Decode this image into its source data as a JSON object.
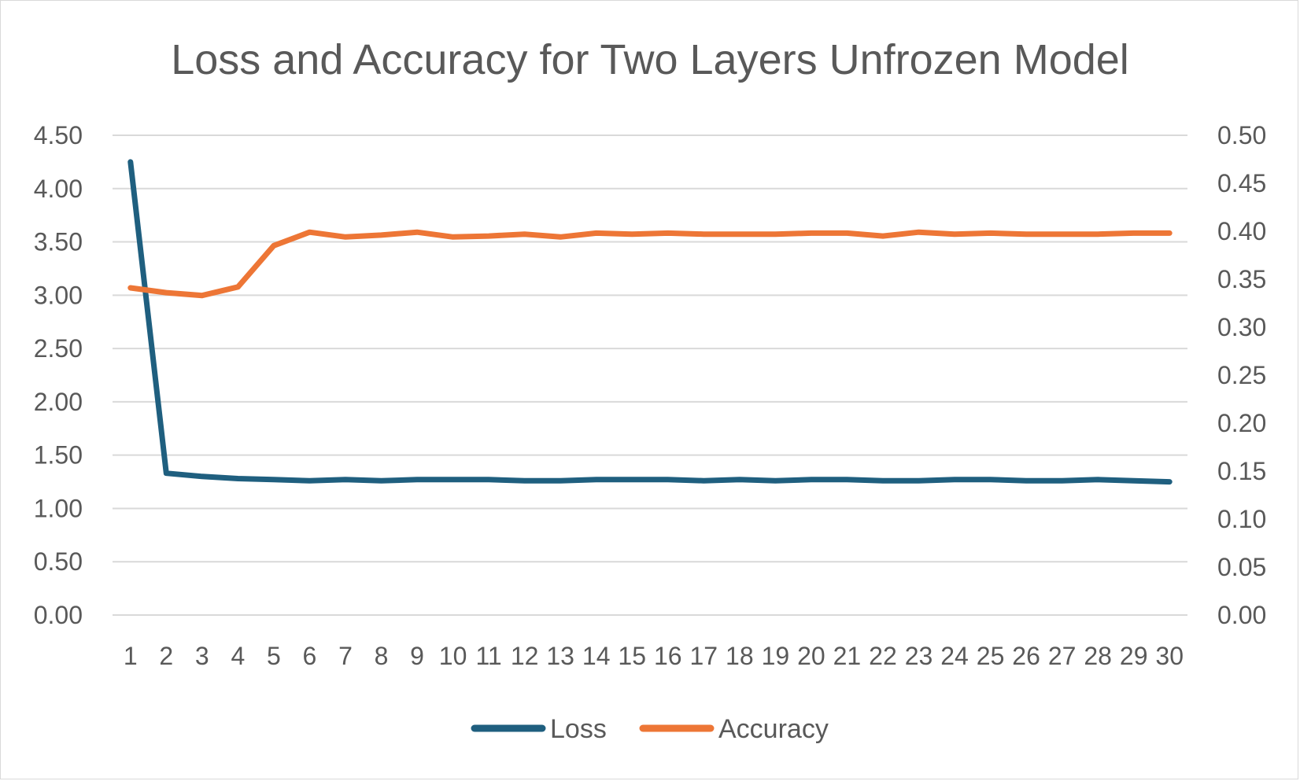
{
  "chart_data": {
    "type": "line",
    "title": "Loss and Accuracy for Two Layers Unfrozen Model",
    "xlabel": "",
    "ylabel": "",
    "categories": [
      "1",
      "2",
      "3",
      "4",
      "5",
      "6",
      "7",
      "8",
      "9",
      "10",
      "11",
      "12",
      "13",
      "14",
      "15",
      "16",
      "17",
      "18",
      "19",
      "20",
      "21",
      "22",
      "23",
      "24",
      "25",
      "26",
      "27",
      "28",
      "29",
      "30"
    ],
    "y_axis_left": {
      "min": 0,
      "max": 4.5,
      "ticks": [
        "0.00",
        "0.50",
        "1.00",
        "1.50",
        "2.00",
        "2.50",
        "3.00",
        "3.50",
        "4.00",
        "4.50"
      ]
    },
    "y_axis_right": {
      "min": 0,
      "max": 0.5,
      "ticks": [
        "0.00",
        "0.05",
        "0.10",
        "0.15",
        "0.20",
        "0.25",
        "0.30",
        "0.35",
        "0.40",
        "0.45",
        "0.50"
      ]
    },
    "grid": true,
    "legend": "bottom",
    "series": [
      {
        "name": "Loss",
        "axis": "left",
        "color": "#1f5f7f",
        "values": [
          4.25,
          1.33,
          1.3,
          1.28,
          1.27,
          1.26,
          1.27,
          1.26,
          1.27,
          1.27,
          1.27,
          1.26,
          1.26,
          1.27,
          1.27,
          1.27,
          1.26,
          1.27,
          1.26,
          1.27,
          1.27,
          1.26,
          1.26,
          1.27,
          1.27,
          1.26,
          1.26,
          1.27,
          1.26,
          1.25
        ]
      },
      {
        "name": "Accuracy",
        "axis": "right",
        "color": "#ed7636",
        "values": [
          0.341,
          0.336,
          0.333,
          0.342,
          0.385,
          0.399,
          0.394,
          0.396,
          0.399,
          0.394,
          0.395,
          0.397,
          0.394,
          0.398,
          0.397,
          0.398,
          0.397,
          0.397,
          0.397,
          0.398,
          0.398,
          0.395,
          0.399,
          0.397,
          0.398,
          0.397,
          0.397,
          0.397,
          0.398,
          0.398
        ]
      }
    ]
  }
}
